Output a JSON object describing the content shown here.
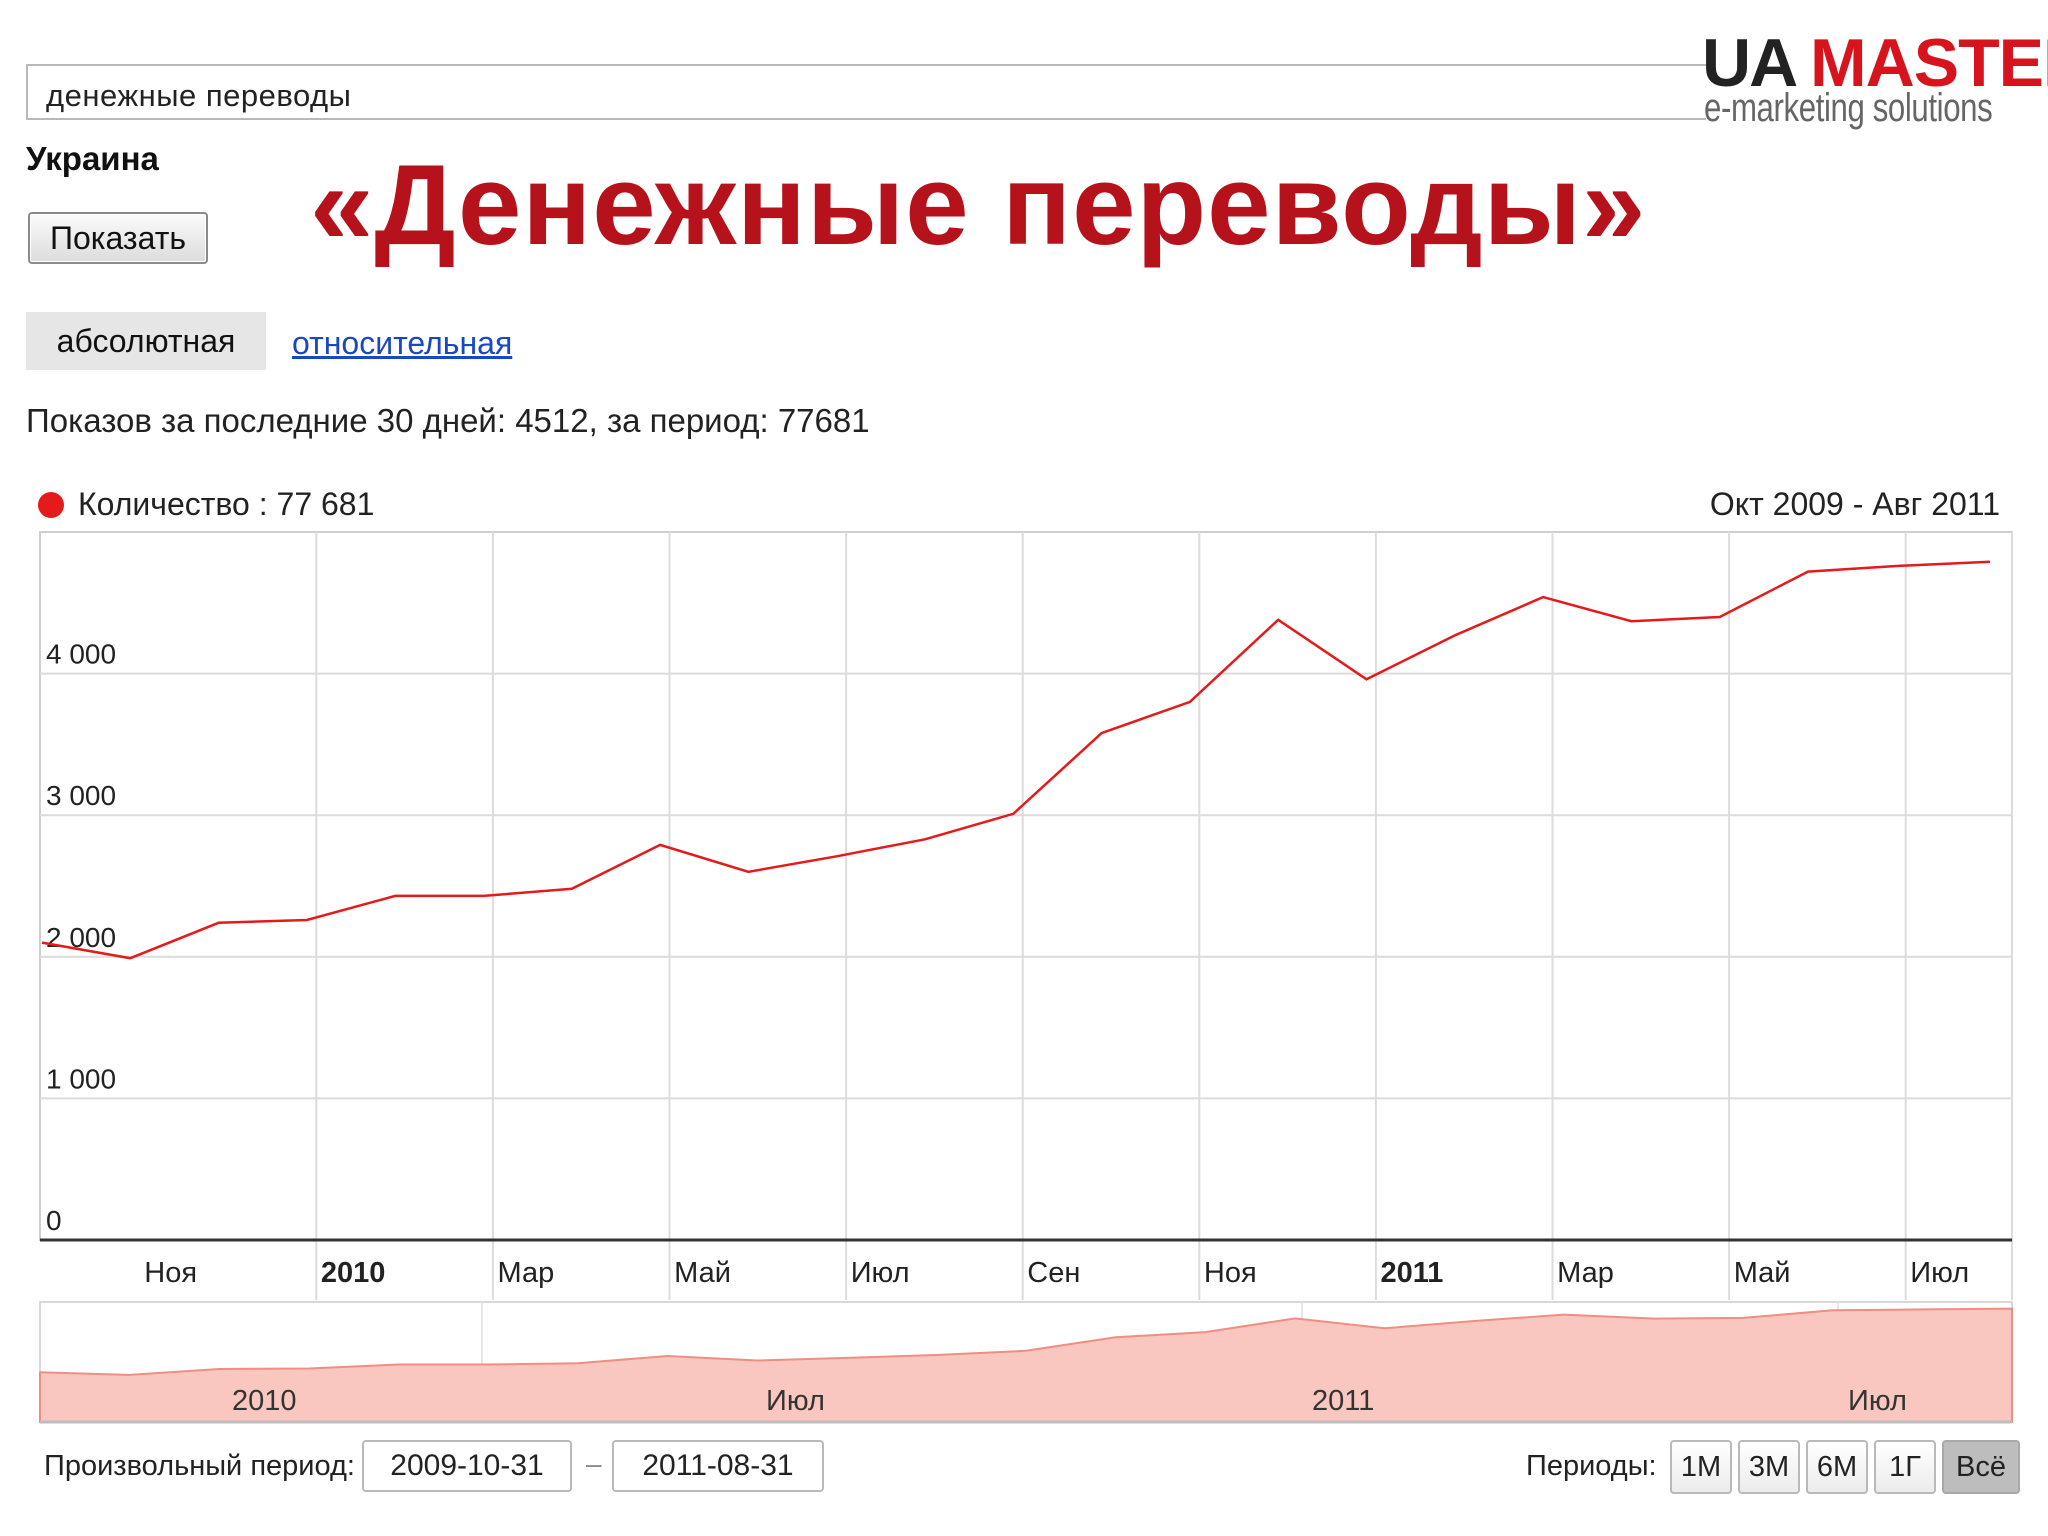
{
  "search": {
    "value": "денежные переводы"
  },
  "region": "Украина",
  "show_button": "Показать",
  "headline": "«Денежные переводы»",
  "logo": {
    "part1": "UA",
    "part2": "MASTER",
    "tagline": "e-marketing  solutions"
  },
  "tabs": {
    "absolute": "абсолютная",
    "relative": "относительная"
  },
  "stats": "Показов за последние 30 дней: 4512, за период: 77681",
  "legend": "Количество : 77 681",
  "range": "Окт 2009 - Авг 2011",
  "chart_data": {
    "type": "line",
    "x": [
      "2009-10",
      "2009-11",
      "2009-12",
      "2010-01",
      "2010-02",
      "2010-03",
      "2010-04",
      "2010-05",
      "2010-06",
      "2010-07",
      "2010-08",
      "2010-09",
      "2010-10",
      "2010-11",
      "2010-12",
      "2011-01",
      "2011-02",
      "2011-03",
      "2011-04",
      "2011-05",
      "2011-06",
      "2011-07",
      "2011-08"
    ],
    "series": [
      {
        "name": "Количество",
        "color": "#e51a1a",
        "values": [
          2100,
          1990,
          2240,
          2260,
          2430,
          2430,
          2480,
          2790,
          2600,
          2710,
          2830,
          3010,
          3580,
          3800,
          4380,
          3960,
          4270,
          4540,
          4370,
          4400,
          4720,
          4760,
          4790
        ]
      }
    ],
    "y_ticks": [
      "0",
      "1 000",
      "2 000",
      "3 000",
      "4 000"
    ],
    "y_tick_values": [
      0,
      1000,
      2000,
      3000,
      4000
    ],
    "ylim": [
      0,
      5000
    ],
    "x_tick_labels": [
      "Ноя",
      "2010",
      "Мар",
      "Май",
      "Июл",
      "Сен",
      "Ноя",
      "2011",
      "Мар",
      "Май",
      "Июл"
    ],
    "x_tick_bold": [
      false,
      true,
      false,
      false,
      false,
      false,
      false,
      true,
      false,
      false,
      false
    ],
    "navigator_labels": [
      "2010",
      "Июл",
      "2011",
      "Июл"
    ],
    "grid": true
  },
  "custom_period": {
    "label": "Произвольный период:",
    "from": "2009-10-31",
    "dash": "–",
    "to": "2011-08-31"
  },
  "periods": {
    "label": "Периоды:",
    "buttons": [
      "1М",
      "3М",
      "6М",
      "1Г",
      "Всё"
    ],
    "active": "Всё"
  }
}
